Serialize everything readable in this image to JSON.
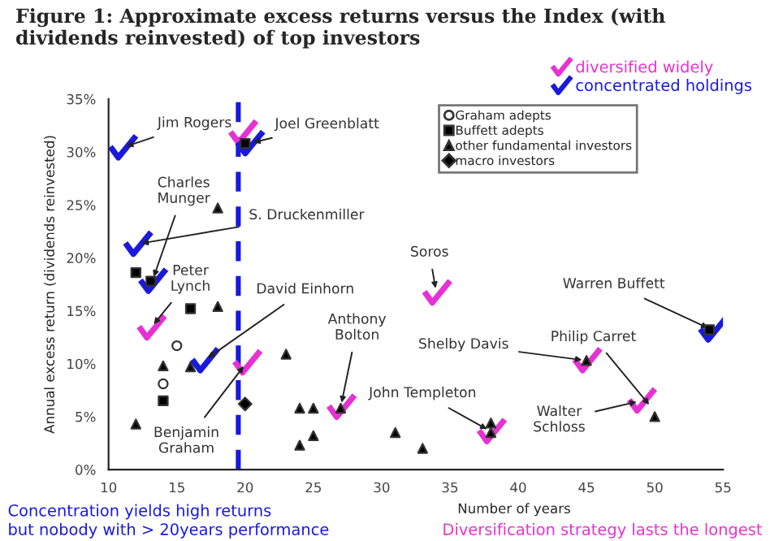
{
  "chart_data": {
    "type": "scatter",
    "title": "Figure 1: Approximate excess returns versus the Index (with dividends reinvested) of top investors",
    "xlabel": "Number of years",
    "ylabel": "Annual excess return (dividends reinvested)",
    "xlim": [
      10,
      55
    ],
    "xticks": [
      10,
      15,
      20,
      25,
      30,
      35,
      40,
      45,
      50,
      55
    ],
    "ylim": [
      0,
      35
    ],
    "yticks": [
      {
        "value": 0,
        "label": "0%"
      },
      {
        "value": 5,
        "label": "5%"
      },
      {
        "value": 10,
        "label": "10%"
      },
      {
        "value": 15,
        "label": "15%"
      },
      {
        "value": 20,
        "label": "20%"
      },
      {
        "value": 25,
        "label": "25%"
      },
      {
        "value": 30,
        "label": "30%"
      },
      {
        "value": 35,
        "label": "35%"
      }
    ],
    "grid": false,
    "legend": "top right",
    "series": [
      {
        "name": "Graham adepts",
        "color": "#ffffff",
        "marker": "circle",
        "x": [
          15,
          14
        ],
        "values": [
          11.7,
          8.1
        ]
      },
      {
        "name": "Buffett adepts",
        "color": "#000000",
        "marker": "square",
        "x": [
          12,
          13.1,
          16,
          14,
          54,
          20
        ],
        "values": [
          18.6,
          17.8,
          15.2,
          6.5,
          13.2,
          30.8
        ]
      },
      {
        "name": "other fundamental investors",
        "color": "#000000",
        "marker": "triangle",
        "x": [
          18,
          18,
          12,
          14,
          16,
          23,
          24,
          25,
          24,
          25,
          27,
          31,
          33,
          38,
          38,
          50,
          45
        ],
        "values": [
          24.7,
          15.4,
          4.3,
          9.8,
          9.7,
          10.9,
          5.8,
          5.8,
          2.3,
          3.2,
          5.8,
          3.5,
          2.0,
          4.4,
          3.5,
          5.0,
          10.3
        ]
      },
      {
        "name": "macro investors",
        "color": "#000000",
        "marker": "diamond",
        "x": [
          20
        ],
        "values": [
          6.2
        ]
      },
      {
        "name": "diversified widely",
        "color": "#e632d2",
        "marker": "cross",
        "x": [
          19.8,
          13.1,
          20.1,
          27,
          34,
          38,
          45,
          49
        ],
        "values": [
          31.8,
          13.4,
          10.1,
          5.9,
          16.7,
          3.6,
          10.3,
          6.5
        ]
      },
      {
        "name": "concentrated holdings",
        "color": "#1a1adc",
        "marker": "cross",
        "x": [
          11,
          20.3,
          12.1,
          13.2,
          17,
          54.2
        ],
        "values": [
          30.4,
          30.8,
          21.3,
          17.8,
          10.3,
          13.2
        ]
      }
    ],
    "ref_lines": [
      {
        "axis": "x",
        "value": 19.5,
        "color": "#1a1adc",
        "line_style": "dashed"
      }
    ],
    "annotations": [
      {
        "text": "Jim Rogers",
        "x": 11,
        "y": 30.4
      },
      {
        "text": "Joel Greenblatt",
        "x": 20.3,
        "y": 30.8
      },
      {
        "text": "Charles\nMunger",
        "x": 13.2,
        "y": 17.8
      },
      {
        "text": "S. Druckenmiller",
        "x": 12.1,
        "y": 21.3
      },
      {
        "text": "Peter\nLynch",
        "x": 13.1,
        "y": 13.4
      },
      {
        "text": "David Einhorn",
        "x": 17,
        "y": 10.3
      },
      {
        "text": "Benjamin\nGraham",
        "x": 20.1,
        "y": 10.1
      },
      {
        "text": "Anthony\nBolton",
        "x": 27,
        "y": 5.9
      },
      {
        "text": "Soros",
        "x": 34,
        "y": 16.7
      },
      {
        "text": "John Templeton",
        "x": 38,
        "y": 3.6
      },
      {
        "text": "Shelby Davis",
        "x": 45,
        "y": 10.3
      },
      {
        "text": "Philip Carret",
        "x": 49.8,
        "y": 5.8
      },
      {
        "text": "Walter\nSchloss",
        "x": 49,
        "y": 6.5
      },
      {
        "text": "Warren Buffett",
        "x": 54.2,
        "y": 13.2
      },
      "Concentration yields high returns\nbut nobody with > 20years performance",
      "Diversification strategy lasts the longest"
    ]
  }
}
